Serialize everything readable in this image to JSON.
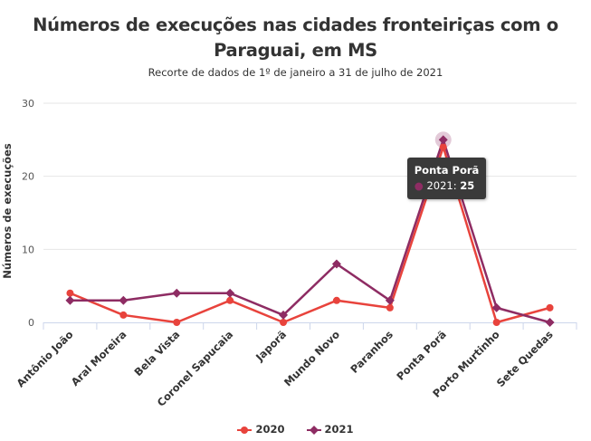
{
  "title": "Números de execuções nas cidades fronteiriças com o Paraguai, em MS",
  "subtitle": "Recorte de dados de 1º de janeiro a 31 de julho de 2021",
  "chart_data": {
    "type": "line",
    "title": "Números de execuções nas cidades fronteiriças com o Paraguai, em MS",
    "subtitle": "Recorte de dados de 1º de janeiro a 31 de julho de 2021",
    "xlabel": "",
    "ylabel": "Números de execuções",
    "ylim": [
      0,
      30
    ],
    "yticks": [
      0,
      10,
      20,
      30
    ],
    "grid": true,
    "legend_position": "bottom",
    "categories": [
      "Antônio João",
      "Aral Moreira",
      "Bela Vista",
      "Coronel Sapucaia",
      "Japorã",
      "Mundo Novo",
      "Paranhos",
      "Ponta Porã",
      "Porto Murtinho",
      "Sete Quedas"
    ],
    "series": [
      {
        "name": "2020",
        "color": "#e8433c",
        "marker": "circle",
        "values": [
          4,
          1,
          0,
          3,
          0,
          3,
          2,
          24,
          0,
          2
        ]
      },
      {
        "name": "2021",
        "color": "#8e2c63",
        "marker": "diamond",
        "values": [
          3,
          3,
          4,
          4,
          1,
          8,
          3,
          25,
          2,
          0
        ]
      }
    ],
    "tooltip": {
      "category": "Ponta Porã",
      "series": "2021",
      "value": 25
    }
  }
}
